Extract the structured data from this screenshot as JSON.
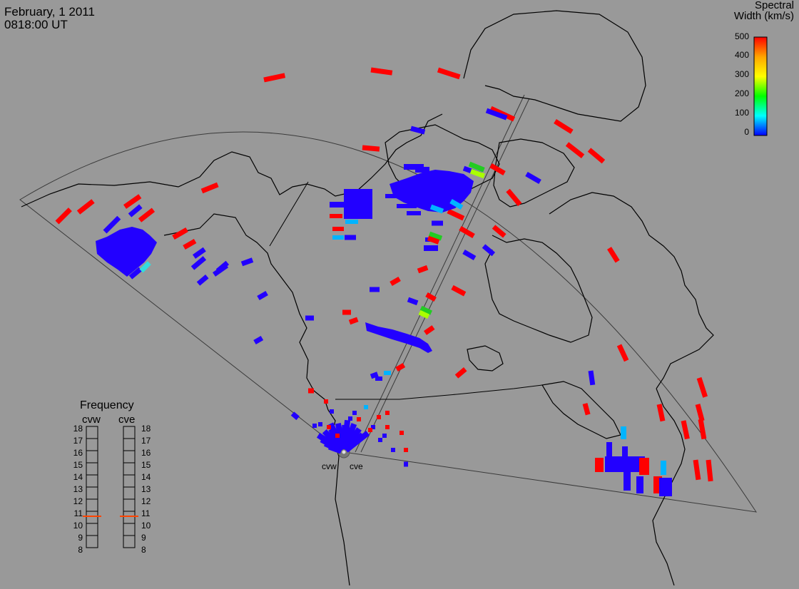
{
  "header": {
    "date": "February, 1 2011",
    "time": "0818:00 UT"
  },
  "colorbar": {
    "title_line1": "Spectral",
    "title_line2": "Width (km/s)",
    "ticks": [
      "500",
      "400",
      "300",
      "200",
      "100",
      "0"
    ],
    "colors": [
      "#ff0000",
      "#ffa500",
      "#ffff00",
      "#00ff00",
      "#00ffff",
      "#0000ff"
    ]
  },
  "frequency": {
    "title": "Frequency",
    "radars": [
      "cvw",
      "cve"
    ],
    "levels": [
      "18",
      "17",
      "16",
      "15",
      "14",
      "13",
      "12",
      "11",
      "10",
      "9",
      "8"
    ],
    "current_mhz": 10.8
  },
  "sites": {
    "west_label": "cvw",
    "east_label": "cve"
  },
  "colors": {
    "background": "#999999",
    "coastline": "#000000",
    "fov": "#3a3a3a",
    "indicator": "#ff4400"
  }
}
